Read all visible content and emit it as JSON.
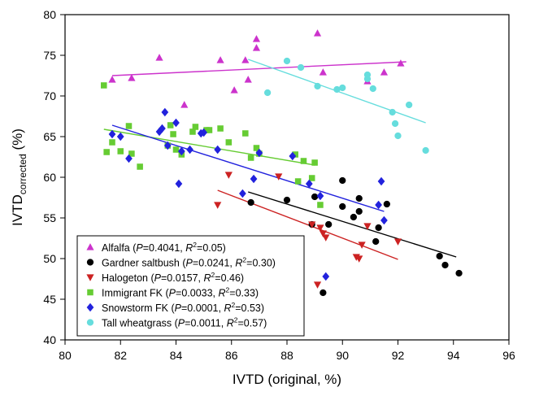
{
  "chart_data": {
    "type": "scatter",
    "xlabel": "IVTD (original, %)",
    "ylabel": {
      "main": "IVTD",
      "sub": "corrected",
      "suffix": " (%)"
    },
    "xlim": [
      80,
      96
    ],
    "ylim": [
      40,
      80
    ],
    "x_ticks": [
      80,
      82,
      84,
      86,
      88,
      90,
      92,
      94,
      96
    ],
    "y_ticks": [
      40,
      45,
      50,
      55,
      60,
      65,
      70,
      75,
      80
    ],
    "grid": false,
    "legend_position": "bottom-left",
    "series": [
      {
        "name": "Alfalfa",
        "stats": {
          "p": "0.4041",
          "r2": "0.05"
        },
        "marker": "triangle-up",
        "color": "#cc33cc",
        "points": [
          [
            81.7,
            72.0
          ],
          [
            82.4,
            72.2
          ],
          [
            83.4,
            74.7
          ],
          [
            84.3,
            68.9
          ],
          [
            85.6,
            74.4
          ],
          [
            86.1,
            70.7
          ],
          [
            86.5,
            74.4
          ],
          [
            86.6,
            72.0
          ],
          [
            86.9,
            75.9
          ],
          [
            86.9,
            77.0
          ],
          [
            89.1,
            77.7
          ],
          [
            89.3,
            72.9
          ],
          [
            90.9,
            71.8
          ],
          [
            91.5,
            72.9
          ],
          [
            92.1,
            74.0
          ]
        ],
        "fit": [
          [
            81.7,
            72.5
          ],
          [
            92.3,
            74.2
          ]
        ]
      },
      {
        "name": "Gardner saltbush",
        "stats": {
          "p": "0.0241",
          "r2": "0.30"
        },
        "marker": "circle",
        "color": "#000000",
        "points": [
          [
            86.7,
            56.9
          ],
          [
            88.0,
            57.2
          ],
          [
            88.9,
            54.2
          ],
          [
            89.0,
            57.6
          ],
          [
            89.3,
            45.8
          ],
          [
            89.5,
            54.2
          ],
          [
            90.0,
            59.6
          ],
          [
            90.0,
            56.4
          ],
          [
            90.4,
            55.1
          ],
          [
            90.6,
            55.8
          ],
          [
            90.6,
            57.4
          ],
          [
            91.2,
            52.1
          ],
          [
            91.3,
            53.8
          ],
          [
            91.6,
            56.7
          ],
          [
            93.5,
            50.3
          ],
          [
            93.7,
            49.2
          ],
          [
            94.2,
            48.2
          ]
        ],
        "fit": [
          [
            86.6,
            58.2
          ],
          [
            94.1,
            50.2
          ]
        ]
      },
      {
        "name": "Halogeton",
        "stats": {
          "p": "0.0157",
          "r2": "0.46"
        },
        "marker": "triangle-down",
        "color": "#cc2222",
        "points": [
          [
            85.5,
            56.6
          ],
          [
            85.9,
            60.3
          ],
          [
            87.7,
            60.1
          ],
          [
            88.9,
            54.2
          ],
          [
            89.2,
            53.8
          ],
          [
            89.3,
            53.1
          ],
          [
            89.4,
            52.6
          ],
          [
            89.1,
            46.8
          ],
          [
            90.5,
            50.2
          ],
          [
            90.6,
            50.0
          ],
          [
            90.7,
            51.7
          ],
          [
            90.9,
            54.0
          ],
          [
            92.0,
            52.1
          ]
        ],
        "fit": [
          [
            85.5,
            58.4
          ],
          [
            92.0,
            49.9
          ]
        ]
      },
      {
        "name": "Immigrant FK",
        "stats": {
          "p": "0.0033",
          "r2": "0.33"
        },
        "marker": "square",
        "color": "#66cc33",
        "points": [
          [
            81.4,
            71.3
          ],
          [
            81.5,
            63.1
          ],
          [
            81.7,
            64.3
          ],
          [
            82.0,
            63.2
          ],
          [
            82.3,
            66.3
          ],
          [
            82.4,
            62.9
          ],
          [
            82.7,
            61.3
          ],
          [
            83.7,
            63.9
          ],
          [
            83.8,
            66.4
          ],
          [
            83.9,
            65.3
          ],
          [
            84.0,
            63.4
          ],
          [
            84.2,
            62.8
          ],
          [
            84.6,
            65.6
          ],
          [
            84.7,
            66.2
          ],
          [
            85.1,
            65.8
          ],
          [
            85.2,
            65.8
          ],
          [
            85.6,
            66.0
          ],
          [
            85.9,
            64.3
          ],
          [
            86.5,
            65.4
          ],
          [
            86.7,
            62.4
          ],
          [
            86.9,
            63.6
          ],
          [
            87.0,
            62.9
          ],
          [
            88.3,
            62.8
          ],
          [
            88.4,
            59.5
          ],
          [
            88.6,
            62.0
          ],
          [
            88.9,
            59.9
          ],
          [
            89.0,
            61.8
          ],
          [
            89.2,
            56.6
          ]
        ],
        "fit": [
          [
            81.4,
            65.9
          ],
          [
            89.0,
            61.5
          ]
        ]
      },
      {
        "name": "Snowstorm FK",
        "stats": {
          "p": "0.0001",
          "r2": "0.53"
        },
        "marker": "diamond",
        "color": "#2222dd",
        "points": [
          [
            81.7,
            65.3
          ],
          [
            82.0,
            65.0
          ],
          [
            82.3,
            62.3
          ],
          [
            83.4,
            65.6
          ],
          [
            83.5,
            66.0
          ],
          [
            83.6,
            68.0
          ],
          [
            83.7,
            63.9
          ],
          [
            84.0,
            66.7
          ],
          [
            84.1,
            59.2
          ],
          [
            84.2,
            63.2
          ],
          [
            84.5,
            63.4
          ],
          [
            84.9,
            65.4
          ],
          [
            85.0,
            65.5
          ],
          [
            85.5,
            63.4
          ],
          [
            86.4,
            58.0
          ],
          [
            86.8,
            59.8
          ],
          [
            87.0,
            63.0
          ],
          [
            88.2,
            62.6
          ],
          [
            88.8,
            59.2
          ],
          [
            89.2,
            57.7
          ],
          [
            89.4,
            47.8
          ],
          [
            91.3,
            56.6
          ],
          [
            91.4,
            59.5
          ],
          [
            91.5,
            54.7
          ]
        ],
        "fit": [
          [
            81.7,
            66.4
          ],
          [
            91.5,
            55.8
          ]
        ]
      },
      {
        "name": "Tall wheatgrass",
        "stats": {
          "p": "0.0011",
          "r2": "0.57"
        },
        "marker": "circle",
        "color": "#66dddd",
        "points": [
          [
            87.3,
            70.4
          ],
          [
            88.0,
            74.3
          ],
          [
            88.5,
            73.5
          ],
          [
            89.1,
            71.2
          ],
          [
            89.8,
            70.8
          ],
          [
            90.0,
            71.0
          ],
          [
            90.9,
            72.1
          ],
          [
            90.9,
            72.6
          ],
          [
            91.1,
            70.9
          ],
          [
            91.8,
            68.0
          ],
          [
            91.9,
            66.6
          ],
          [
            92.0,
            65.1
          ],
          [
            92.4,
            68.9
          ],
          [
            93.0,
            63.3
          ]
        ],
        "fit": [
          [
            86.6,
            74.5
          ],
          [
            93.0,
            66.7
          ]
        ]
      }
    ]
  }
}
